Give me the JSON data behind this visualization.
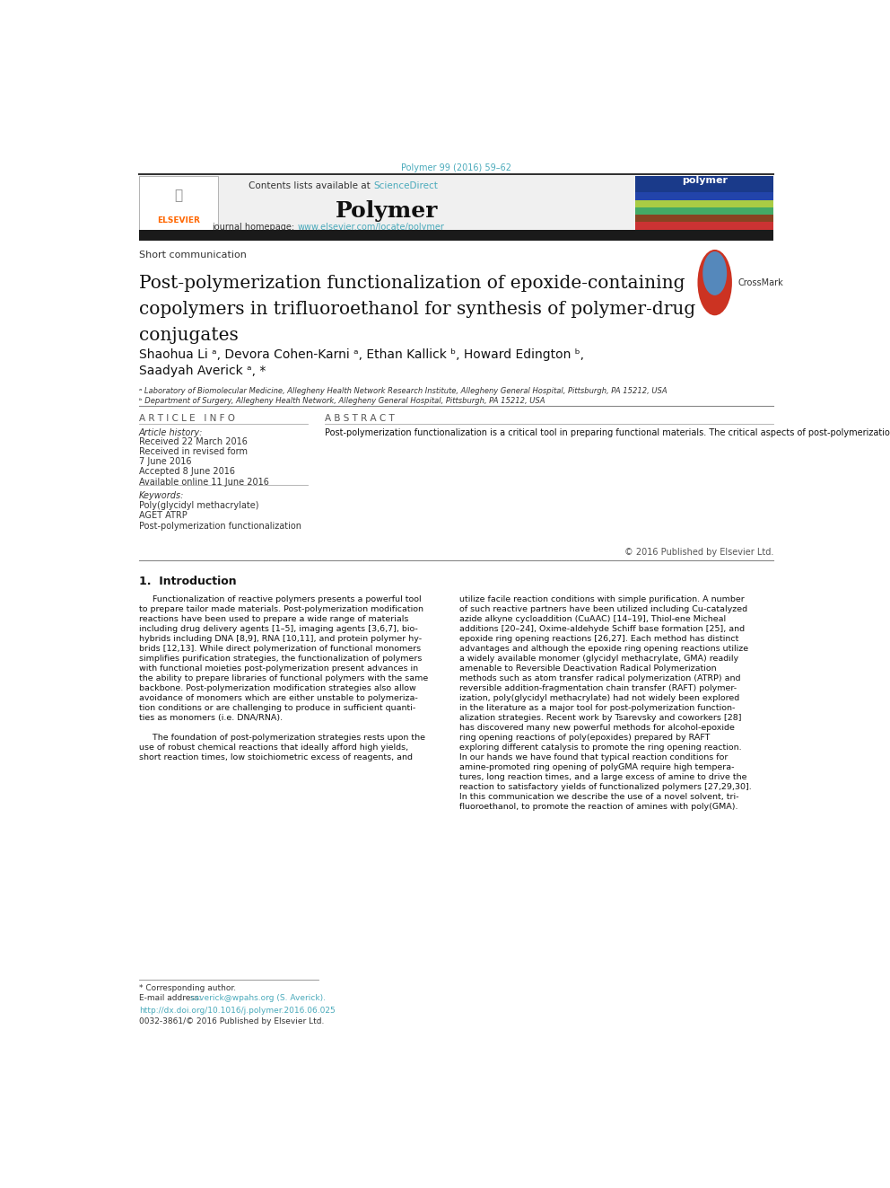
{
  "page_width": 9.92,
  "page_height": 13.23,
  "bg_color": "#ffffff",
  "journal_ref": "Polymer 99 (2016) 59–62",
  "journal_ref_color": "#4AAABB",
  "header_bg": "#f0f0f0",
  "sciencedirect_color": "#4AAABB",
  "journal_name": "Polymer",
  "journal_homepage_label": "journal homepage:",
  "journal_homepage_url": "www.elsevier.com/locate/polymer",
  "journal_homepage_url_color": "#4AAABB",
  "dark_bar_color": "#1a1a1a",
  "article_type": "Short communication",
  "paper_title_line1": "Post-polymerization functionalization of epoxide-containing",
  "paper_title_line2": "copolymers in trifluoroethanol for synthesis of polymer-drug",
  "paper_title_line3": "conjugates",
  "authors_line1": "Shaohua Li ᵃ, Devora Cohen-Karni ᵃ, Ethan Kallick ᵇ, Howard Edington ᵇ,",
  "authors_line2": "Saadyah Averick ᵃ, *",
  "affiliation_a": "ᵃ Laboratory of Biomolecular Medicine, Allegheny Health Network Research Institute, Allegheny General Hospital, Pittsburgh, PA 15212, USA",
  "affiliation_b": "ᵇ Department of Surgery, Allegheny Health Network, Allegheny General Hospital, Pittsburgh, PA 15212, USA",
  "article_info_header": "A R T I C L E   I N F O",
  "article_history_label": "Article history:",
  "article_history_lines": [
    "Received 22 March 2016",
    "Received in revised form",
    "7 June 2016",
    "Accepted 8 June 2016",
    "Available online 11 June 2016"
  ],
  "keywords_label": "Keywords:",
  "keywords_lines": [
    "Poly(glycidyl methacrylate)",
    "AGET ATRP",
    "Post-polymerization functionalization"
  ],
  "abstract_header": "A B S T R A C T",
  "abstract_text": "Post-polymerization functionalization is a critical tool in preparing functional materials. The critical aspects of post-polymerization reactions are high yields, short reaction times, simple purification, near stoichiometric amounts of reactants, and facile reaction conditions. Polymeric epoxides (i.e. poly(glycidyl methacrylate)) represent an underutilized class of functionalized polymers due to long reaction times, high temperatures, and large excess of reactants to drive the reaction to high conversion in a reasonable time frame. In this manuscript we describe the use of a novel solvent trifluoroethanol (TFE) for the ring opening of amines with poly(glycidyl methacrylate). We demonstrate that TFE gives faster reaction times and higher yields than traditional solvents used for the ring opening reaction. We utilized TFE to prepare dual functionalized polymers that could be “clicked” using strain promoted azide alkyne cycloaddition and an amine-bearing drug ring opening of the polymeric backbone.",
  "copyright": "© 2016 Published by Elsevier Ltd.",
  "intro_section": "1.  Introduction",
  "intro_col1_lines": [
    "     Functionalization of reactive polymers presents a powerful tool",
    "to prepare tailor made materials. Post-polymerization modification",
    "reactions have been used to prepare a wide range of materials",
    "including drug delivery agents [1–5], imaging agents [3,6,7], bio-",
    "hybrids including DNA [8,9], RNA [10,11], and protein polymer hy-",
    "brids [12,13]. While direct polymerization of functional monomers",
    "simplifies purification strategies, the functionalization of polymers",
    "with functional moieties post-polymerization present advances in",
    "the ability to prepare libraries of functional polymers with the same",
    "backbone. Post-polymerization modification strategies also allow",
    "avoidance of monomers which are either unstable to polymeriza-",
    "tion conditions or are challenging to produce in sufficient quanti-",
    "ties as monomers (i.e. DNA/RNA).",
    "",
    "     The foundation of post-polymerization strategies rests upon the",
    "use of robust chemical reactions that ideally afford high yields,",
    "short reaction times, low stoichiometric excess of reagents, and"
  ],
  "intro_col2_lines": [
    "utilize facile reaction conditions with simple purification. A number",
    "of such reactive partners have been utilized including Cu-catalyzed",
    "azide alkyne cycloaddition (CuAAC) [14–19], Thiol-ene Micheal",
    "additions [20–24], Oxime-aldehyde Schiff base formation [25], and",
    "epoxide ring opening reactions [26,27]. Each method has distinct",
    "advantages and although the epoxide ring opening reactions utilize",
    "a widely available monomer (glycidyl methacrylate, GMA) readily",
    "amenable to Reversible Deactivation Radical Polymerization",
    "methods such as atom transfer radical polymerization (ATRP) and",
    "reversible addition-fragmentation chain transfer (RAFT) polymer-",
    "ization, poly(glycidyl methacrylate) had not widely been explored",
    "in the literature as a major tool for post-polymerization function-",
    "alization strategies. Recent work by Tsarevsky and coworkers [28]",
    "has discovered many new powerful methods for alcohol-epoxide",
    "ring opening reactions of poly(epoxides) prepared by RAFT",
    "exploring different catalysis to promote the ring opening reaction.",
    "In our hands we have found that typical reaction conditions for",
    "amine-promoted ring opening of polyGMA require high tempera-",
    "tures, long reaction times, and a large excess of amine to drive the",
    "reaction to satisfactory yields of functionalized polymers [27,29,30].",
    "In this communication we describe the use of a novel solvent, tri-",
    "fluoroethanol, to promote the reaction of amines with poly(GMA)."
  ],
  "footnote_corresponding": "* Corresponding author.",
  "footnote_email_label": "E-mail address:",
  "footnote_email": "saverick@wpahs.org (S. Averick).",
  "footnote_email_color": "#4AAABB",
  "doi_url": "http://dx.doi.org/10.1016/j.polymer.2016.06.025",
  "doi_color": "#4AAABB",
  "issn": "0032-3861/© 2016 Published by Elsevier Ltd.",
  "elsevier_orange": "#FF6600",
  "link_color": "#4AAABB"
}
